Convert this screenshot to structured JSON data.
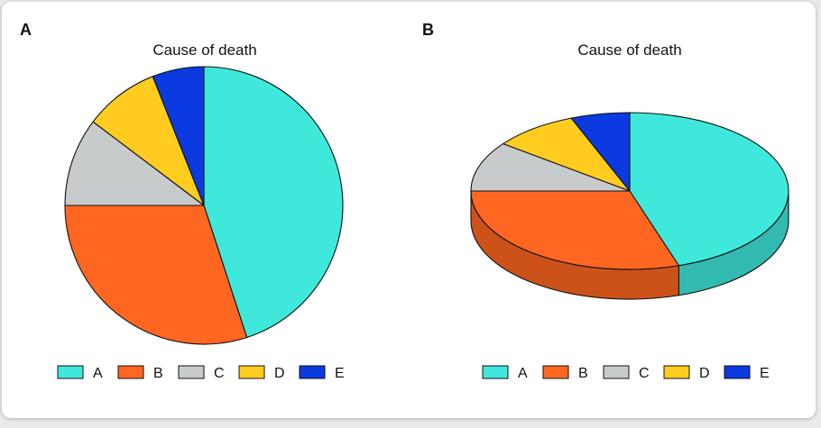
{
  "chart_data": [
    {
      "panel": "A",
      "type": "pie",
      "title": "Cause of death",
      "categories": [
        "A",
        "B",
        "C",
        "D",
        "E"
      ],
      "values": [
        45,
        30,
        10.3,
        8.7,
        6
      ],
      "colors": [
        "#40E8DC",
        "#FF6621",
        "#C8CBCB",
        "#FFCC1F",
        "#0A3AE0"
      ],
      "legend": "bottom"
    },
    {
      "panel": "B",
      "type": "pie",
      "title": "Cause of death",
      "categories": [
        "A",
        "B",
        "C",
        "D",
        "E"
      ],
      "values": [
        45,
        30,
        10.3,
        8.7,
        6
      ],
      "colors": [
        "#40E8DC",
        "#FF6621",
        "#C8CBCB",
        "#FFCC1F",
        "#0A3AE0"
      ],
      "legend": "bottom",
      "style": "3d"
    }
  ]
}
